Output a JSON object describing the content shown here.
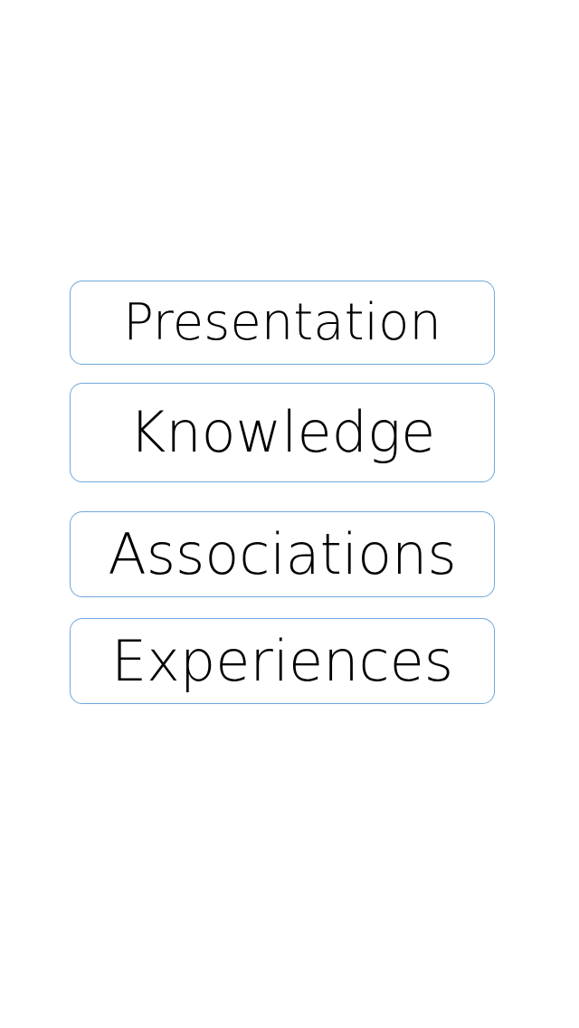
{
  "menu": {
    "items": [
      {
        "label": "Presentation"
      },
      {
        "label": "Knowledge"
      },
      {
        "label": "Associations"
      },
      {
        "label": "Experiences"
      }
    ]
  },
  "colors": {
    "background": "#ffffff",
    "box_border": "#6fa8dc",
    "text": "#000000"
  }
}
